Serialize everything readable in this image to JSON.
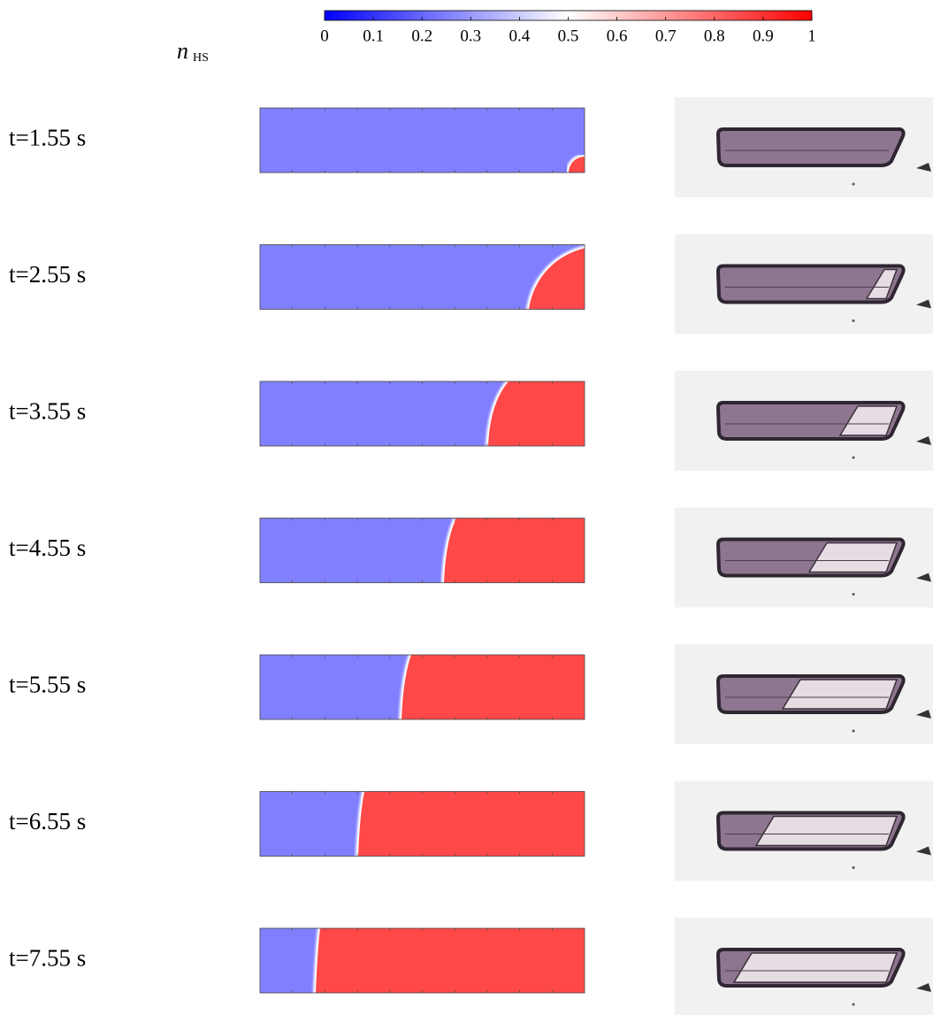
{
  "colorbar": {
    "label": "n",
    "label_subscript": "HS",
    "lim": [
      0,
      1
    ],
    "ticks": [
      0,
      0.1,
      0.2,
      0.3,
      0.4,
      0.5,
      0.6,
      0.7,
      0.8,
      0.9,
      1
    ]
  },
  "rows": [
    {
      "label": "t=1.55 s"
    },
    {
      "label": "t=2.55 s"
    },
    {
      "label": "t=3.55 s"
    },
    {
      "label": "t=4.55 s"
    },
    {
      "label": "t=5.55 s"
    },
    {
      "label": "t=6.55 s"
    },
    {
      "label": "t=7.55 s"
    }
  ]
}
